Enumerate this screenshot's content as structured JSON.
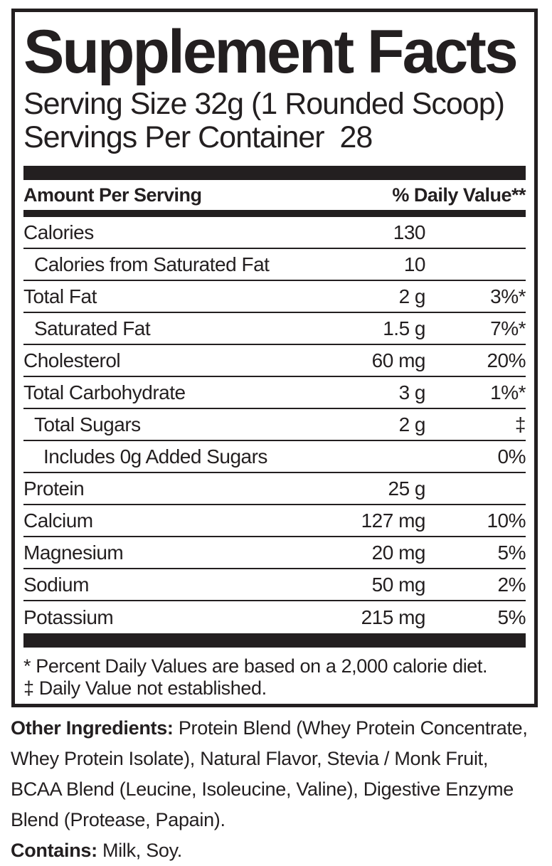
{
  "colors": {
    "ink": "#231f20",
    "background": "#ffffff"
  },
  "panel": {
    "title": "Supplement Facts",
    "serving_size": "Serving Size 32g (1 Rounded Scoop)",
    "servings_per_container": "Servings Per Container  28",
    "columns": {
      "amount_header": "Amount Per Serving",
      "dv_header": "% Daily Value**"
    },
    "rows": [
      {
        "name": "Calories",
        "amount": "130",
        "dv": "",
        "indent": 0
      },
      {
        "name": "Calories from Saturated Fat",
        "amount": "10",
        "dv": "",
        "indent": 1
      },
      {
        "name": "Total Fat",
        "amount": "2 g",
        "dv": "3%*",
        "indent": 0
      },
      {
        "name": "Saturated Fat",
        "amount": "1.5 g",
        "dv": "7%*",
        "indent": 1
      },
      {
        "name": "Cholesterol",
        "amount": "60 mg",
        "dv": "20%",
        "indent": 0
      },
      {
        "name": "Total Carbohydrate",
        "amount": "3 g",
        "dv": "1%*",
        "indent": 0
      },
      {
        "name": "Total Sugars",
        "amount": "2 g",
        "dv": "‡",
        "indent": 1
      },
      {
        "name": "Includes 0g Added Sugars",
        "amount": "",
        "dv": "0%",
        "indent": 2
      },
      {
        "name": "Protein",
        "amount": "25 g",
        "dv": "",
        "indent": 0
      },
      {
        "name": "Calcium",
        "amount": "127 mg",
        "dv": "10%",
        "indent": 0
      },
      {
        "name": "Magnesium",
        "amount": "20 mg",
        "dv": "5%",
        "indent": 0
      },
      {
        "name": "Sodium",
        "amount": "50 mg",
        "dv": "2%",
        "indent": 0
      },
      {
        "name": "Potassium",
        "amount": "215 mg",
        "dv": "5%",
        "indent": 0
      }
    ],
    "footnotes": {
      "percent_dv": "* Percent Daily Values are based on a 2,000 calorie diet.",
      "not_established": "‡ Daily Value not established."
    }
  },
  "other_ingredients": {
    "label": "Other Ingredients:",
    "line1": " Protein Blend (Whey Protein Concentrate,",
    "line2": "Whey Protein Isolate), Natural Flavor, Stevia / Monk Fruit,",
    "line3": "BCAA Blend (Leucine, Isoleucine, Valine), Digestive Enzyme",
    "line4": "Blend (Protease, Papain)."
  },
  "contains": {
    "label": "Contains:",
    "text": " Milk, Soy."
  }
}
